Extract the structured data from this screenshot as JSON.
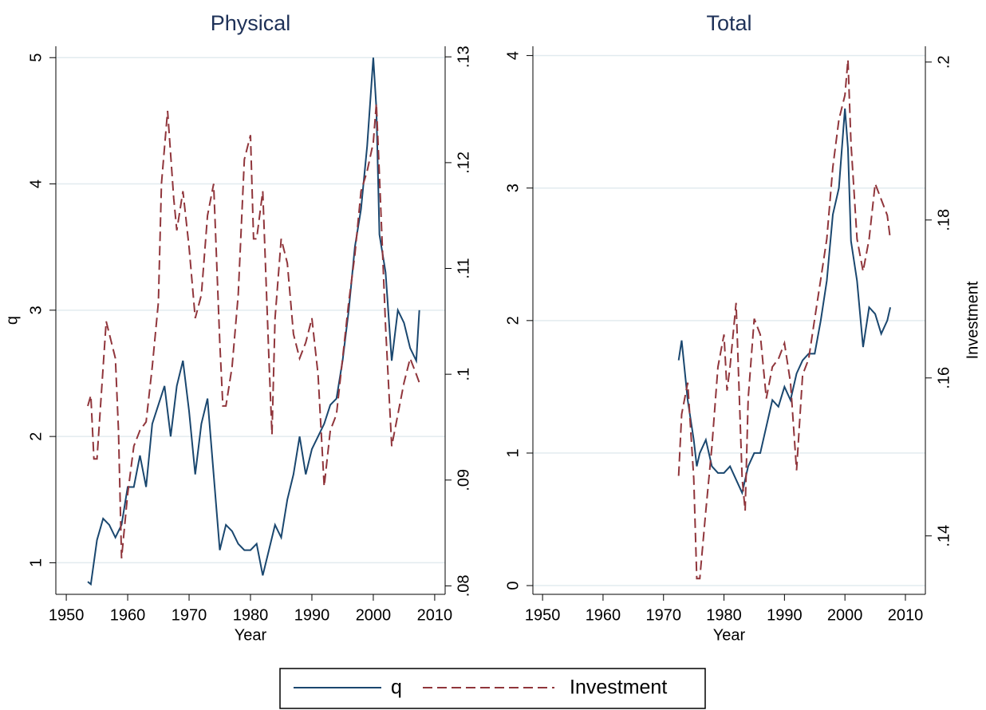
{
  "chart_data": [
    {
      "type": "line",
      "title": "Physical",
      "x_label": "Year",
      "y_label": "q",
      "xlim": [
        1948.3,
        2011.7
      ],
      "xticks": [
        1950,
        1960,
        1970,
        1980,
        1990,
        2000,
        2010
      ],
      "ylim": [
        0.75,
        5.09
      ],
      "yticks": [
        1,
        2,
        3,
        4,
        5
      ],
      "y2lim": [
        0.0792,
        0.131
      ],
      "y2ticks": [
        {
          "value": 0.08,
          "label": ".08"
        },
        {
          "value": 0.09,
          "label": ".09"
        },
        {
          "value": 0.1,
          "label": ".1"
        },
        {
          "value": 0.11,
          "label": ".11"
        },
        {
          "value": 0.12,
          "label": ".12"
        },
        {
          "value": 0.13,
          "label": ".13"
        }
      ],
      "grid": true,
      "legend": "bottom",
      "series": [
        {
          "name": "q",
          "color": "#1a476f",
          "style": "solid",
          "x": [
            1953.5,
            1954,
            1955,
            1956,
            1957,
            1958,
            1959,
            1960,
            1961,
            1962,
            1963,
            1964,
            1965,
            1966,
            1967,
            1968,
            1969,
            1970,
            1971,
            1972,
            1973,
            1974,
            1975,
            1976,
            1977,
            1978,
            1979,
            1980,
            1981,
            1982,
            1983,
            1984,
            1985,
            1986,
            1987,
            1988,
            1989,
            1990,
            1991,
            1992,
            1993,
            1994,
            1995,
            1996,
            1997,
            1998,
            1999,
            2000,
            2000.5,
            2001,
            2002,
            2003,
            2004,
            2005,
            2006,
            2007,
            2007.5
          ],
          "values": [
            0.85,
            0.83,
            1.18,
            1.35,
            1.3,
            1.2,
            1.3,
            1.6,
            1.6,
            1.85,
            1.6,
            2.1,
            2.25,
            2.4,
            2.0,
            2.4,
            2.6,
            2.2,
            1.7,
            2.1,
            2.3,
            1.7,
            1.1,
            1.3,
            1.25,
            1.15,
            1.1,
            1.1,
            1.15,
            0.9,
            1.1,
            1.3,
            1.2,
            1.5,
            1.7,
            2.0,
            1.7,
            1.9,
            2.0,
            2.1,
            2.25,
            2.3,
            2.6,
            3.0,
            3.5,
            3.8,
            4.3,
            5.0,
            4.6,
            3.6,
            3.3,
            2.6,
            3.0,
            2.9,
            2.7,
            2.6,
            3.0
          ]
        },
        {
          "name": "Investment",
          "color": "#90353b",
          "style": "dashed",
          "axis": "y2",
          "x": [
            1953.5,
            1954,
            1954.5,
            1955,
            1956.5,
            1958,
            1958.5,
            1959,
            1960,
            1961,
            1962,
            1963,
            1964,
            1965,
            1965.5,
            1966.5,
            1967.5,
            1968,
            1969,
            1970,
            1971,
            1972,
            1973,
            1974,
            1975,
            1975.5,
            1976,
            1977,
            1978,
            1979,
            1980,
            1980.5,
            1981,
            1982,
            1983,
            1983.5,
            1984,
            1985,
            1986,
            1987,
            1988,
            1989,
            1990,
            1991,
            1992,
            1993,
            1994,
            1995,
            1996,
            1997,
            1998,
            1999,
            2000,
            2000.5,
            2001,
            2002,
            2003,
            2004,
            2005,
            2006,
            2007,
            2007.5
          ],
          "values": [
            0.097,
            0.098,
            0.092,
            0.092,
            0.105,
            0.1015,
            0.0947,
            0.0826,
            0.0887,
            0.0932,
            0.0947,
            0.0955,
            0.1007,
            0.1068,
            0.118,
            0.1249,
            0.1166,
            0.1136,
            0.1173,
            0.112,
            0.1053,
            0.1075,
            0.115,
            0.118,
            0.103,
            0.097,
            0.097,
            0.1007,
            0.1075,
            0.1203,
            0.1226,
            0.1128,
            0.1128,
            0.1173,
            0.1015,
            0.0943,
            0.1053,
            0.1128,
            0.1105,
            0.1038,
            0.1015,
            0.103,
            0.1053,
            0.1,
            0.0894,
            0.0947,
            0.0962,
            0.1015,
            0.1068,
            0.1113,
            0.1173,
            0.1192,
            0.1219,
            0.1256,
            0.1188,
            0.1045,
            0.0932,
            0.0962,
            0.0992,
            0.1015,
            0.1,
            0.0992
          ]
        }
      ]
    },
    {
      "type": "line",
      "title": "Total",
      "x_label": "Year",
      "y2_label": "Investment",
      "xlim": [
        1948.4,
        2013.3
      ],
      "xticks": [
        1950,
        1960,
        1970,
        1980,
        1990,
        2000,
        2010
      ],
      "ylim": [
        -0.066,
        4.07
      ],
      "yticks": [
        0,
        1,
        2,
        3,
        4
      ],
      "y2lim": [
        0.1326,
        0.202
      ],
      "y2ticks": [
        {
          "value": 0.14,
          "label": ".14"
        },
        {
          "value": 0.16,
          "label": ".16"
        },
        {
          "value": 0.18,
          "label": ".18"
        },
        {
          "value": 0.2,
          "label": ".2"
        }
      ],
      "grid": true,
      "series": [
        {
          "name": "q",
          "color": "#1a476f",
          "style": "solid",
          "x": [
            1972.5,
            1973,
            1974,
            1975,
            1975.5,
            1976,
            1977,
            1978,
            1979,
            1980,
            1981,
            1982,
            1983,
            1984,
            1985,
            1986,
            1987,
            1988,
            1989,
            1990,
            1991,
            1992,
            1993,
            1994,
            1995,
            1996,
            1997,
            1998,
            1999,
            2000,
            2000.5,
            2001,
            2002,
            2003,
            2004,
            2005,
            2006,
            2007,
            2007.5
          ],
          "values": [
            1.7,
            1.85,
            1.4,
            1.1,
            0.9,
            1.0,
            1.1,
            0.9,
            0.85,
            0.85,
            0.9,
            0.8,
            0.7,
            0.9,
            1.0,
            1.0,
            1.2,
            1.4,
            1.35,
            1.5,
            1.4,
            1.6,
            1.7,
            1.75,
            1.75,
            2.0,
            2.3,
            2.8,
            3.0,
            3.6,
            3.3,
            2.6,
            2.3,
            1.8,
            2.1,
            2.05,
            1.9,
            2.0,
            2.1
          ]
        },
        {
          "name": "Investment",
          "color": "#90353b",
          "style": "dashed",
          "axis": "y2",
          "x": [
            1972.5,
            1973,
            1974,
            1975,
            1975.5,
            1976,
            1977,
            1978,
            1979,
            1980,
            1980.5,
            1981,
            1982,
            1983,
            1983.5,
            1984,
            1985,
            1986,
            1987,
            1988,
            1989,
            1990,
            1991,
            1992,
            1993,
            1994,
            1995,
            1996,
            1997,
            1998,
            1999,
            2000,
            2000.5,
            2001,
            2002,
            2003,
            2004,
            2005,
            2006,
            2007,
            2007.5
          ],
          "values": [
            0.1476,
            0.1554,
            0.1594,
            0.1473,
            0.1346,
            0.1346,
            0.1432,
            0.1513,
            0.1614,
            0.1655,
            0.1584,
            0.1614,
            0.1695,
            0.1473,
            0.1432,
            0.1574,
            0.1675,
            0.1655,
            0.1574,
            0.1614,
            0.1624,
            0.1644,
            0.1594,
            0.1483,
            0.1604,
            0.1624,
            0.1675,
            0.1725,
            0.1776,
            0.1867,
            0.1927,
            0.1958,
            0.2003,
            0.1897,
            0.1776,
            0.1735,
            0.1776,
            0.1846,
            0.1826,
            0.1806,
            0.1776
          ]
        }
      ]
    }
  ]
}
